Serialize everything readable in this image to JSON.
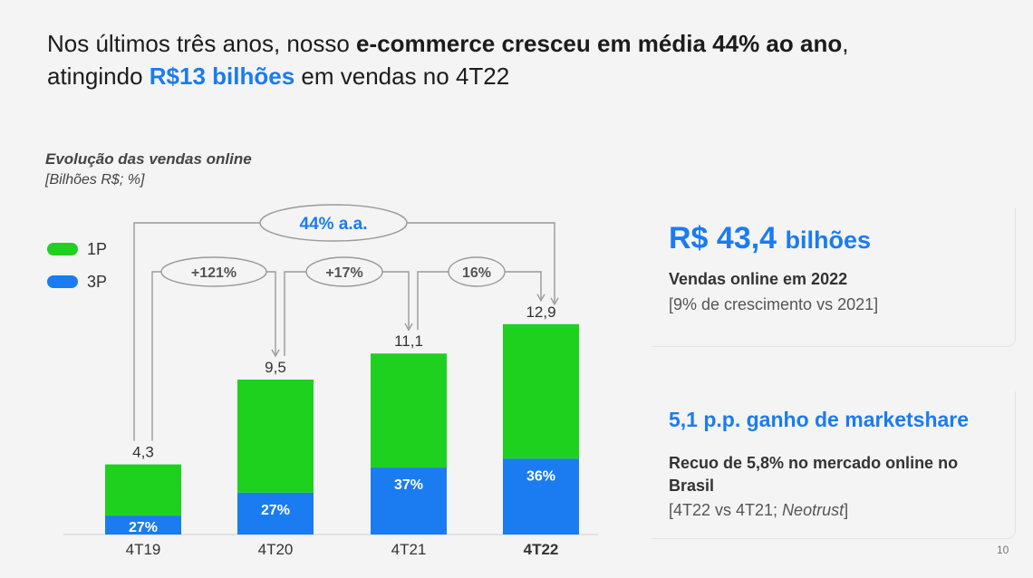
{
  "headline": {
    "line1_prefix": "Nos últimos três anos, nosso ",
    "line1_bold": "e-commerce cresceu em média 44% ao ano",
    "line1_suffix": ",",
    "line2_prefix": "atingindo ",
    "line2_highlight": "R$13 bilhões",
    "line2_suffix": " em vendas no 4T22"
  },
  "chart_data": {
    "type": "bar",
    "stacked": true,
    "title": "Evolução das vendas online",
    "subtitle": "[Bilhões R$; %]",
    "categories": [
      "4T19",
      "4T20",
      "4T21",
      "4T22"
    ],
    "totals": [
      4.3,
      9.5,
      11.1,
      12.9
    ],
    "total_labels": [
      "4,3",
      "9,5",
      "11,1",
      "12,9"
    ],
    "series": [
      {
        "name": "1P",
        "color": "#1fd11f",
        "share_pct": [
          73,
          73,
          63,
          64
        ]
      },
      {
        "name": "3P",
        "color": "#1a7cf0",
        "share_pct": [
          27,
          27,
          37,
          36
        ],
        "labels": [
          "27%",
          "27%",
          "37%",
          "36%"
        ]
      }
    ],
    "legend_position": "top-left",
    "growth_annotations": [
      {
        "label": "+121%",
        "from": "4T19",
        "to": "4T20"
      },
      {
        "label": "+17%",
        "from": "4T20",
        "to": "4T21"
      },
      {
        "label": "16%",
        "from": "4T21",
        "to": "4T22"
      },
      {
        "label": "44% a.a.",
        "from": "4T19",
        "to": "4T22"
      }
    ],
    "ylim": [
      0,
      14
    ],
    "grid": false
  },
  "card1": {
    "value": "R$ 43,4",
    "value_unit": "bilhões",
    "bold": "Vendas online em 2022",
    "note": "[9% de crescimento vs 2021]"
  },
  "card2": {
    "value": "5,1 p.p. ganho de marketshare",
    "bold_line1": "Recuo de 5,8% no mercado online no",
    "bold_line2": "Brasil",
    "note_prefix": "[4T22 vs 4T21; ",
    "note_italic": "Neotrust",
    "note_suffix": "]"
  },
  "page_number": "10"
}
